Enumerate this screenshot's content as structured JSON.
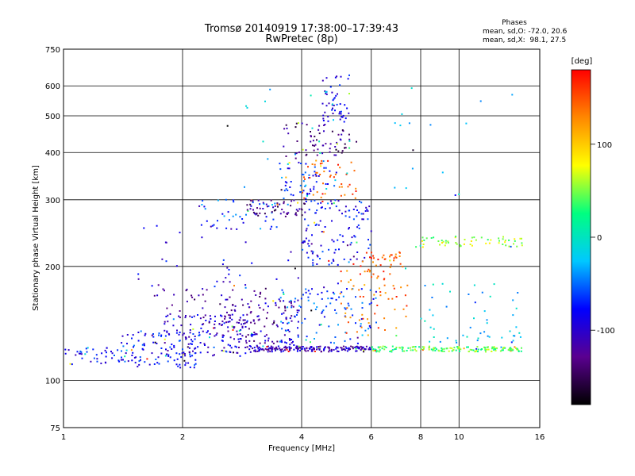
{
  "chart_data": {
    "type": "scatter",
    "title": "Tromsø 20140919 17:38:00–17:39:43",
    "subtitle": "RwPretec (8p)",
    "xlabel": "Frequency [MHz]",
    "ylabel": "Stationary phase Virtual Height [km]",
    "xscale": "log",
    "yscale": "log",
    "xlim": [
      1,
      16
    ],
    "ylim": [
      75,
      750
    ],
    "xticks": [
      1,
      2,
      4,
      6,
      8,
      10,
      16
    ],
    "xtick_labels": [
      "1",
      "2",
      "4",
      "6",
      "8",
      "10",
      "16"
    ],
    "yticks": [
      75,
      100,
      200,
      300,
      400,
      500,
      600,
      750
    ],
    "ytick_labels": [
      "75",
      "100",
      "200",
      "300",
      "400",
      "500",
      "600",
      "750"
    ],
    "grid": true,
    "phase_info": {
      "heading": "Phases",
      "line1": "mean, sd,O: -72.0, 20.6",
      "line2": "mean, sd,X:  98.1, 27.5"
    },
    "colorbar": {
      "label": "[deg]",
      "range": [
        -180,
        180
      ],
      "ticks": [
        100,
        0,
        -100
      ],
      "tick_labels": [
        "100",
        "0",
        "-100"
      ],
      "colormap": [
        "#000000",
        "#5a0090",
        "#0000ff",
        "#00c8ff",
        "#00ff80",
        "#ffff00",
        "#ff8800",
        "#ff0000"
      ]
    },
    "clusters": [
      {
        "x": [
          1.0,
          1.4
        ],
        "y": [
          110,
          122
        ],
        "phase": -80,
        "count": 40
      },
      {
        "x": [
          1.4,
          2.2
        ],
        "y": [
          108,
          135
        ],
        "phase": -75,
        "count": 110
      },
      {
        "x": [
          1.8,
          3.0
        ],
        "y": [
          115,
          150
        ],
        "phase": -95,
        "count": 120
      },
      {
        "x": [
          2.5,
          4.0
        ],
        "y": [
          118,
          165
        ],
        "phase": -110,
        "count": 150
      },
      {
        "x": [
          1.7,
          3.5
        ],
        "y": [
          140,
          180
        ],
        "phase": -120,
        "count": 60
      },
      {
        "x": [
          3.0,
          6.0
        ],
        "y": [
          119,
          123
        ],
        "phase": -105,
        "count": 170
      },
      {
        "x": [
          6.0,
          14.5
        ],
        "y": [
          119,
          123
        ],
        "phase": 40,
        "count": 160
      },
      {
        "x": [
          3.5,
          6.2
        ],
        "y": [
          125,
          175
        ],
        "phase": -60,
        "count": 110
      },
      {
        "x": [
          5.0,
          7.5
        ],
        "y": [
          130,
          200
        ],
        "phase": 140,
        "count": 60
      },
      {
        "x": [
          4.0,
          6.0
        ],
        "y": [
          200,
          300
        ],
        "phase": -80,
        "count": 120
      },
      {
        "x": [
          2.2,
          3.6
        ],
        "y": [
          250,
          300
        ],
        "phase": -60,
        "count": 40
      },
      {
        "x": [
          2.9,
          4.1
        ],
        "y": [
          270,
          300
        ],
        "phase": -130,
        "count": 60
      },
      {
        "x": [
          3.5,
          5.0
        ],
        "y": [
          290,
          380
        ],
        "phase": -70,
        "count": 60
      },
      {
        "x": [
          4.0,
          5.5
        ],
        "y": [
          300,
          380
        ],
        "phase": 150,
        "count": 45
      },
      {
        "x": [
          3.6,
          5.3
        ],
        "y": [
          380,
          480
        ],
        "phase": -130,
        "count": 70
      },
      {
        "x": [
          4.5,
          5.3
        ],
        "y": [
          480,
          640
        ],
        "phase": -90,
        "count": 50
      },
      {
        "x": [
          5.4,
          7.2
        ],
        "y": [
          190,
          220
        ],
        "phase": 150,
        "count": 40
      },
      {
        "x": [
          7.5,
          14.5
        ],
        "y": [
          225,
          240
        ],
        "phase": 60,
        "count": 60
      },
      {
        "x": [
          8.0,
          14.5
        ],
        "y": [
          125,
          180
        ],
        "phase": -20,
        "count": 50
      },
      {
        "x": [
          1.5,
          5.0
        ],
        "y": [
          170,
          260
        ],
        "phase": -90,
        "count": 40
      },
      {
        "x": [
          2.5,
          14.5
        ],
        "y": [
          300,
          600
        ],
        "phase": -20,
        "count": 40
      }
    ]
  }
}
